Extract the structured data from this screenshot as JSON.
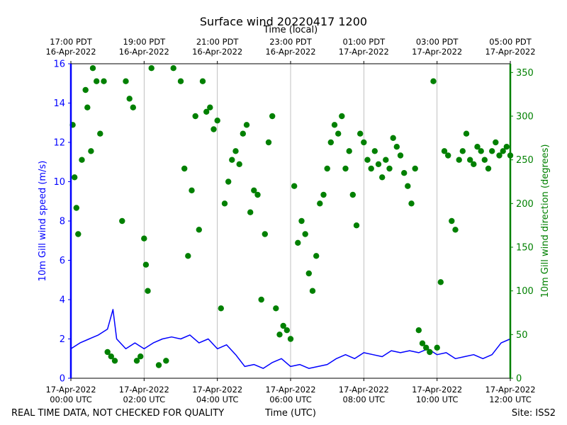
{
  "chart_data": {
    "type": "line+scatter",
    "title": "Surface wind 20220417 1200",
    "top_axis_label": "Time (local)",
    "xlabel": "Time (UTC)",
    "ylabel_left": "10m Gill wind speed (m/s)",
    "ylabel_right": "10m Gill wind direction (degrees)",
    "ylim_left": [
      0,
      16
    ],
    "ylim_right": [
      0,
      360
    ],
    "xlim_hours_utc": [
      0,
      12
    ],
    "grid": "vertical lines at top/bottom ticks",
    "left_yticks": [
      0,
      2,
      4,
      6,
      8,
      10,
      12,
      14,
      16
    ],
    "right_yticks": [
      0,
      50,
      100,
      150,
      200,
      250,
      300,
      350
    ],
    "bottom_ticks": [
      {
        "hour": 0,
        "line1": "17-Apr-2022",
        "line2": "00:00 UTC"
      },
      {
        "hour": 2,
        "line1": "17-Apr-2022",
        "line2": "02:00 UTC"
      },
      {
        "hour": 4,
        "line1": "17-Apr-2022",
        "line2": "04:00 UTC"
      },
      {
        "hour": 6,
        "line1": "17-Apr-2022",
        "line2": "06:00 UTC"
      },
      {
        "hour": 8,
        "line1": "17-Apr-2022",
        "line2": "08:00 UTC"
      },
      {
        "hour": 10,
        "line1": "17-Apr-2022",
        "line2": "10:00 UTC"
      },
      {
        "hour": 12,
        "line1": "17-Apr-2022",
        "line2": "12:00 UTC"
      }
    ],
    "top_ticks": [
      {
        "hour": 0,
        "line1": "17:00 PDT",
        "line2": "16-Apr-2022"
      },
      {
        "hour": 2,
        "line1": "19:00 PDT",
        "line2": "16-Apr-2022"
      },
      {
        "hour": 4,
        "line1": "21:00 PDT",
        "line2": "16-Apr-2022"
      },
      {
        "hour": 6,
        "line1": "23:00 PDT",
        "line2": "16-Apr-2022"
      },
      {
        "hour": 8,
        "line1": "01:00 PDT",
        "line2": "17-Apr-2022"
      },
      {
        "hour": 10,
        "line1": "03:00 PDT",
        "line2": "17-Apr-2022"
      },
      {
        "hour": 12,
        "line1": "05:00 PDT",
        "line2": "17-Apr-2022"
      }
    ],
    "series": [
      {
        "name": "wind speed",
        "axis": "left",
        "style": "line",
        "color": "#0000ff",
        "points": [
          [
            0.0,
            1.5
          ],
          [
            0.25,
            1.8
          ],
          [
            0.5,
            2.0
          ],
          [
            0.75,
            2.2
          ],
          [
            1.0,
            2.5
          ],
          [
            1.15,
            3.5
          ],
          [
            1.25,
            2.0
          ],
          [
            1.5,
            1.5
          ],
          [
            1.75,
            1.8
          ],
          [
            2.0,
            1.5
          ],
          [
            2.25,
            1.8
          ],
          [
            2.5,
            2.0
          ],
          [
            2.75,
            2.1
          ],
          [
            3.0,
            2.0
          ],
          [
            3.25,
            2.2
          ],
          [
            3.5,
            1.8
          ],
          [
            3.75,
            2.0
          ],
          [
            4.0,
            1.5
          ],
          [
            4.25,
            1.7
          ],
          [
            4.5,
            1.2
          ],
          [
            4.75,
            0.6
          ],
          [
            5.0,
            0.7
          ],
          [
            5.25,
            0.5
          ],
          [
            5.5,
            0.8
          ],
          [
            5.75,
            1.0
          ],
          [
            6.0,
            0.6
          ],
          [
            6.25,
            0.7
          ],
          [
            6.5,
            0.5
          ],
          [
            6.75,
            0.6
          ],
          [
            7.0,
            0.7
          ],
          [
            7.25,
            1.0
          ],
          [
            7.5,
            1.2
          ],
          [
            7.75,
            1.0
          ],
          [
            8.0,
            1.3
          ],
          [
            8.25,
            1.2
          ],
          [
            8.5,
            1.1
          ],
          [
            8.75,
            1.4
          ],
          [
            9.0,
            1.3
          ],
          [
            9.25,
            1.4
          ],
          [
            9.5,
            1.3
          ],
          [
            9.75,
            1.5
          ],
          [
            10.0,
            1.2
          ],
          [
            10.25,
            1.3
          ],
          [
            10.5,
            1.0
          ],
          [
            10.75,
            1.1
          ],
          [
            11.0,
            1.2
          ],
          [
            11.25,
            1.0
          ],
          [
            11.5,
            1.2
          ],
          [
            11.75,
            1.8
          ],
          [
            12.0,
            2.0
          ]
        ]
      },
      {
        "name": "wind direction",
        "axis": "right",
        "style": "scatter",
        "color": "#008000",
        "points": [
          [
            0.05,
            290
          ],
          [
            0.1,
            230
          ],
          [
            0.15,
            195
          ],
          [
            0.2,
            165
          ],
          [
            0.3,
            250
          ],
          [
            0.4,
            330
          ],
          [
            0.45,
            310
          ],
          [
            0.55,
            260
          ],
          [
            0.6,
            355
          ],
          [
            0.7,
            340
          ],
          [
            0.8,
            280
          ],
          [
            0.9,
            340
          ],
          [
            1.0,
            30
          ],
          [
            1.1,
            25
          ],
          [
            1.2,
            20
          ],
          [
            1.4,
            180
          ],
          [
            1.5,
            340
          ],
          [
            1.6,
            320
          ],
          [
            1.7,
            310
          ],
          [
            1.8,
            20
          ],
          [
            1.9,
            25
          ],
          [
            2.0,
            160
          ],
          [
            2.05,
            130
          ],
          [
            2.1,
            100
          ],
          [
            2.2,
            355
          ],
          [
            2.4,
            15
          ],
          [
            2.6,
            20
          ],
          [
            2.8,
            355
          ],
          [
            3.0,
            340
          ],
          [
            3.1,
            240
          ],
          [
            3.2,
            140
          ],
          [
            3.3,
            215
          ],
          [
            3.4,
            300
          ],
          [
            3.5,
            170
          ],
          [
            3.6,
            340
          ],
          [
            3.7,
            305
          ],
          [
            3.8,
            310
          ],
          [
            3.9,
            285
          ],
          [
            4.0,
            295
          ],
          [
            4.1,
            80
          ],
          [
            4.2,
            200
          ],
          [
            4.3,
            225
          ],
          [
            4.4,
            250
          ],
          [
            4.5,
            260
          ],
          [
            4.6,
            245
          ],
          [
            4.7,
            280
          ],
          [
            4.8,
            290
          ],
          [
            4.9,
            190
          ],
          [
            5.0,
            215
          ],
          [
            5.1,
            210
          ],
          [
            5.2,
            90
          ],
          [
            5.3,
            165
          ],
          [
            5.4,
            270
          ],
          [
            5.5,
            300
          ],
          [
            5.6,
            80
          ],
          [
            5.7,
            50
          ],
          [
            5.8,
            60
          ],
          [
            5.9,
            55
          ],
          [
            6.0,
            45
          ],
          [
            6.1,
            220
          ],
          [
            6.2,
            155
          ],
          [
            6.3,
            180
          ],
          [
            6.4,
            165
          ],
          [
            6.5,
            120
          ],
          [
            6.6,
            100
          ],
          [
            6.7,
            140
          ],
          [
            6.8,
            200
          ],
          [
            6.9,
            210
          ],
          [
            7.0,
            240
          ],
          [
            7.1,
            270
          ],
          [
            7.2,
            290
          ],
          [
            7.3,
            280
          ],
          [
            7.4,
            300
          ],
          [
            7.5,
            240
          ],
          [
            7.6,
            260
          ],
          [
            7.7,
            210
          ],
          [
            7.8,
            175
          ],
          [
            7.9,
            280
          ],
          [
            8.0,
            270
          ],
          [
            8.1,
            250
          ],
          [
            8.2,
            240
          ],
          [
            8.3,
            260
          ],
          [
            8.4,
            245
          ],
          [
            8.5,
            230
          ],
          [
            8.6,
            250
          ],
          [
            8.7,
            240
          ],
          [
            8.8,
            275
          ],
          [
            8.9,
            265
          ],
          [
            9.0,
            255
          ],
          [
            9.1,
            235
          ],
          [
            9.2,
            220
          ],
          [
            9.3,
            200
          ],
          [
            9.4,
            240
          ],
          [
            9.5,
            55
          ],
          [
            9.6,
            40
          ],
          [
            9.7,
            35
          ],
          [
            9.8,
            30
          ],
          [
            9.9,
            340
          ],
          [
            10.0,
            35
          ],
          [
            10.1,
            110
          ],
          [
            10.2,
            260
          ],
          [
            10.3,
            255
          ],
          [
            10.4,
            180
          ],
          [
            10.5,
            170
          ],
          [
            10.6,
            250
          ],
          [
            10.7,
            260
          ],
          [
            10.8,
            280
          ],
          [
            10.9,
            250
          ],
          [
            11.0,
            245
          ],
          [
            11.1,
            265
          ],
          [
            11.2,
            260
          ],
          [
            11.3,
            250
          ],
          [
            11.4,
            240
          ],
          [
            11.5,
            260
          ],
          [
            11.6,
            270
          ],
          [
            11.7,
            255
          ],
          [
            11.8,
            260
          ],
          [
            11.9,
            265
          ],
          [
            12.0,
            255
          ]
        ]
      }
    ]
  },
  "footer": {
    "disclaimer": "REAL TIME DATA, NOT CHECKED FOR QUALITY",
    "site": "Site: ISS2"
  },
  "colors": {
    "speed": "#0000ff",
    "direction": "#008000",
    "grid": "#b0b0b0"
  }
}
